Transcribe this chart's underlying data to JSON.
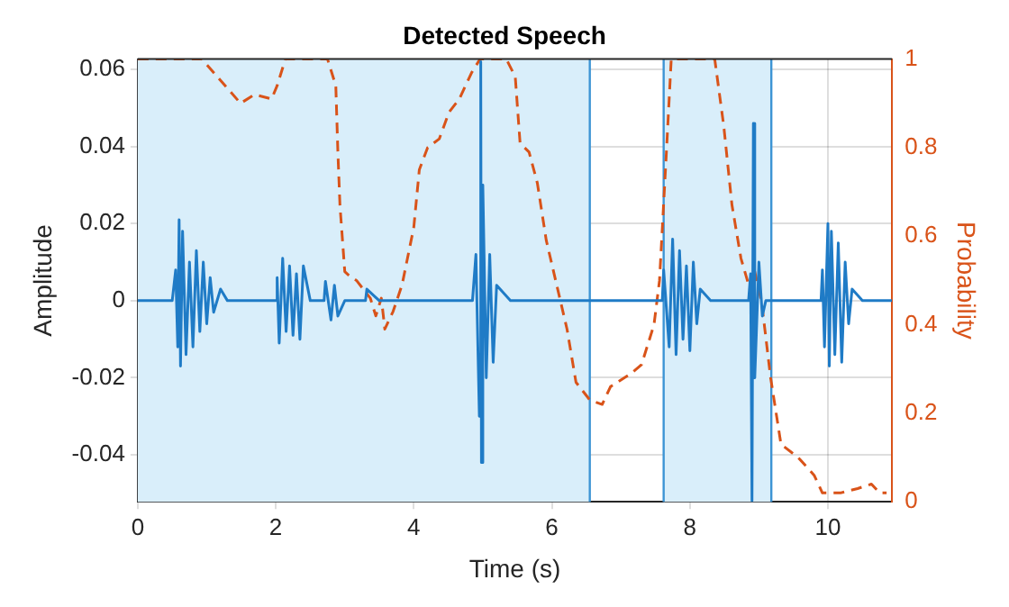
{
  "chart_data": {
    "type": "line",
    "title": "Detected Speech",
    "xlabel": "Time (s)",
    "ylabel": "Amplitude",
    "y2label": "Probability",
    "xlim": [
      0,
      10.93
    ],
    "xticks": [
      0,
      2,
      4,
      6,
      8,
      10
    ],
    "ylim": [
      -0.0522,
      0.0627
    ],
    "yticks": [
      -0.04,
      -0.02,
      0,
      0.02,
      0.04,
      0.06
    ],
    "y2lim": [
      0,
      1
    ],
    "y2ticks": [
      0,
      0.2,
      0.4,
      0.6,
      0.8,
      1
    ],
    "grid": true,
    "legend": false,
    "marker": "none",
    "bands": [
      {
        "axis": "x",
        "from": 0,
        "to": 6.55,
        "color": "#d9eefa"
      },
      {
        "axis": "x",
        "from": 7.62,
        "to": 9.18,
        "color": "#d9eefa"
      }
    ],
    "ref_lines": [
      {
        "axis": "x",
        "value": 6.55,
        "color": "#3d94d4"
      },
      {
        "axis": "x",
        "value": 7.62,
        "color": "#3d94d4"
      },
      {
        "axis": "x",
        "value": 9.18,
        "color": "#3d94d4"
      }
    ],
    "series": [
      {
        "type": "line",
        "color": "#1f7bc6",
        "line_style": "solid",
        "x": [
          0,
          0.5,
          0.55,
          0.58,
          0.6,
          0.62,
          0.65,
          0.7,
          0.75,
          0.8,
          0.85,
          0.9,
          0.95,
          1.0,
          1.05,
          1.1,
          1.2,
          1.3,
          1.5,
          2.0,
          2.02,
          2.05,
          2.1,
          2.15,
          2.2,
          2.25,
          2.3,
          2.35,
          2.4,
          2.5,
          2.7,
          2.72,
          2.8,
          2.85,
          2.9,
          3.0,
          3.3,
          3.32,
          3.5,
          4.85,
          4.9,
          4.95,
          4.97,
          4.98,
          5.0,
          5.05,
          5.1,
          5.15,
          5.2,
          5.4,
          7.6,
          7.62,
          7.7,
          7.75,
          7.8,
          7.85,
          7.9,
          7.95,
          8.0,
          8.05,
          8.1,
          8.15,
          8.3,
          8.85,
          8.88,
          8.9,
          8.92,
          8.94,
          9.0,
          9.05,
          9.1,
          9.9,
          9.92,
          9.95,
          10.0,
          10.02,
          10.05,
          10.1,
          10.15,
          10.2,
          10.25,
          10.3,
          10.35,
          10.5,
          10.93
        ],
        "values": [
          0,
          0,
          0.008,
          -0.012,
          0.021,
          -0.017,
          0.018,
          -0.014,
          0.01,
          -0.012,
          0.013,
          -0.008,
          0.01,
          -0.006,
          0.006,
          -0.003,
          0.003,
          0,
          0,
          0,
          0.006,
          -0.011,
          0.011,
          -0.008,
          0.009,
          -0.009,
          0.007,
          -0.01,
          0.009,
          0,
          0,
          0.005,
          -0.005,
          0.004,
          -0.004,
          0,
          0,
          0.003,
          0,
          0,
          0.012,
          -0.03,
          0.062,
          -0.042,
          0.03,
          -0.02,
          0.012,
          -0.016,
          0.004,
          0,
          0,
          0.008,
          -0.012,
          0.016,
          -0.014,
          0.013,
          -0.01,
          0.009,
          -0.013,
          0.01,
          -0.006,
          0.003,
          0,
          0,
          0.007,
          -0.052,
          0.046,
          -0.02,
          0.01,
          -0.004,
          0,
          0,
          0.008,
          -0.012,
          0.02,
          -0.017,
          0.018,
          -0.014,
          0.015,
          -0.016,
          0.01,
          -0.006,
          0.003,
          0,
          0
        ]
      },
      {
        "type": "line",
        "axis": "y2",
        "color": "#d95319",
        "line_style": "dashed",
        "x": [
          0,
          0.93,
          1.49,
          1.69,
          1.94,
          2.02,
          2.14,
          2.75,
          2.87,
          2.9,
          2.93,
          3.0,
          3.07,
          3.17,
          3.37,
          3.45,
          3.53,
          3.58,
          3.7,
          3.83,
          4.0,
          4.08,
          4.2,
          4.37,
          4.51,
          4.66,
          4.84,
          4.96,
          5.34,
          5.47,
          5.54,
          5.67,
          5.79,
          5.92,
          6.22,
          6.35,
          6.55,
          6.73,
          6.85,
          7.15,
          7.3,
          7.48,
          7.56,
          7.66,
          7.73,
          8.36,
          8.49,
          8.61,
          8.74,
          8.87,
          8.94,
          9.04,
          9.17,
          9.32,
          9.57,
          9.8,
          9.92,
          10.18,
          10.43,
          10.63,
          10.75,
          10.85
        ],
        "values": [
          1,
          1,
          0.9,
          0.92,
          0.91,
          0.94,
          1,
          1,
          0.94,
          0.79,
          0.67,
          0.52,
          0.51,
          0.5,
          0.46,
          0.42,
          0.46,
          0.39,
          0.43,
          0.49,
          0.62,
          0.75,
          0.8,
          0.82,
          0.88,
          0.91,
          0.97,
          1,
          1,
          0.96,
          0.81,
          0.79,
          0.72,
          0.59,
          0.39,
          0.27,
          0.23,
          0.22,
          0.26,
          0.29,
          0.31,
          0.4,
          0.5,
          0.79,
          1,
          1,
          0.85,
          0.67,
          0.55,
          0.48,
          0.52,
          0.45,
          0.28,
          0.13,
          0.1,
          0.06,
          0.02,
          0.02,
          0.03,
          0.04,
          0.02,
          0.02
        ]
      }
    ]
  }
}
